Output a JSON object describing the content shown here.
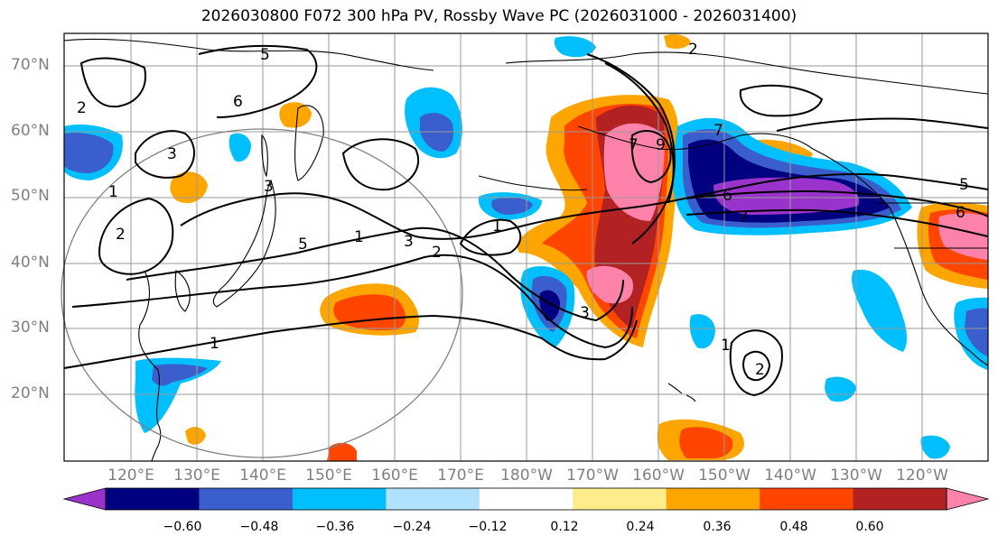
{
  "title": "2026030800 F072 300 hPa PV, Rossby Wave PC (2026031000 - 2026031400)",
  "lat_labels": [
    "70°N",
    "60°N",
    "50°N",
    "40°N",
    "30°N",
    "20°N"
  ],
  "lon_labels": [
    "120°E",
    "130°E",
    "140°E",
    "150°E",
    "160°E",
    "170°E",
    "180°W",
    "170°W",
    "160°W",
    "150°W",
    "140°W",
    "130°W",
    "120°W"
  ],
  "colorbar": {
    "colors": [
      "#9933cc",
      "#000080",
      "#3a5fcd",
      "#00bfff",
      "#b0e2ff",
      "#ffffff",
      "#ffec8b",
      "#ffa500",
      "#ff4500",
      "#b22222",
      "#ff82ab"
    ],
    "tick_labels": [
      "−0.60",
      "−0.48",
      "−0.36",
      "−0.24",
      "−0.12",
      "0.12",
      "0.24",
      "0.36",
      "0.48",
      "0.60"
    ]
  },
  "contour_labels": [
    "1",
    "1",
    "1",
    "1",
    "1",
    "2",
    "2",
    "2",
    "2",
    "2",
    "3",
    "3",
    "3",
    "3",
    "5",
    "5",
    "5",
    "6",
    "6",
    "6",
    "7",
    "7",
    "7",
    "9"
  ],
  "colors": {
    "fill_pos_light": "#ffa500",
    "fill_pos_mid": "#ff4500",
    "fill_pos_dark": "#b22222",
    "fill_pos_max": "#ff82ab",
    "fill_neg_light": "#00bfff",
    "fill_neg_mid": "#3a5fcd",
    "fill_neg_dark": "#000080",
    "fill_neg_max": "#9933cc",
    "grid": "#999999",
    "contour": "#000000"
  }
}
